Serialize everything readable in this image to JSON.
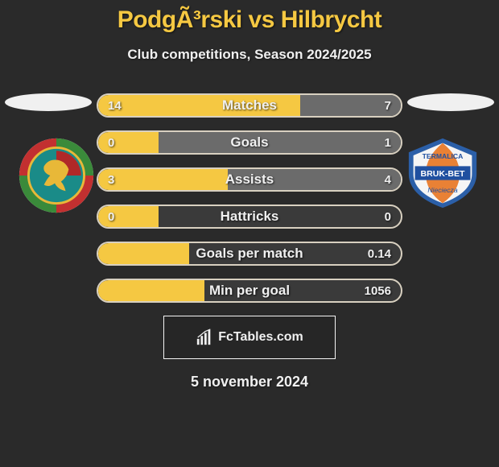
{
  "title": "PodgÃ³rski vs Hilbrycht",
  "subtitle": "Club competitions, Season 2024/2025",
  "footer_site": "FcTables.com",
  "date_line": "5 november 2024",
  "colors": {
    "accent": "#f5c842",
    "bar_right_fill": "#6b6b6b",
    "bar_border": "#d8d0c0",
    "bg": "#2a2a2a",
    "text": "#f0f0f0"
  },
  "left_logo": {
    "name": "miedz-legnica-badge",
    "outer_green": "#3a8a3a",
    "outer_red": "#c23030",
    "inner_teal": "#1a8b88",
    "inner_red": "#b02828",
    "accent_yellow": "#e8b838",
    "lion_color": "#e8b838"
  },
  "right_logo": {
    "name": "bruk-bet-termalica-badge",
    "outer_blue": "#2b5fa8",
    "inner_white": "#f5f5f5",
    "band_blue": "#2050a0",
    "accent_orange": "#e87a2a",
    "text_top": "TERMALICA",
    "text_mid": "BRUK-BET",
    "text_bottom": "Nieciecza"
  },
  "bars": [
    {
      "label": "Matches",
      "left": "14",
      "right": "7",
      "left_pct": 66.7,
      "right_pct": 33.3
    },
    {
      "label": "Goals",
      "left": "0",
      "right": "1",
      "left_pct": 20.0,
      "right_pct": 80.0
    },
    {
      "label": "Assists",
      "left": "3",
      "right": "4",
      "left_pct": 42.9,
      "right_pct": 57.1
    },
    {
      "label": "Hattricks",
      "left": "0",
      "right": "0",
      "left_pct": 20.0,
      "right_pct": 0.0
    },
    {
      "label": "Goals per match",
      "left": "",
      "right": "0.14",
      "left_pct": 30.0,
      "right_pct": 0.0
    },
    {
      "label": "Min per goal",
      "left": "",
      "right": "1056",
      "left_pct": 35.0,
      "right_pct": 0.0
    }
  ]
}
